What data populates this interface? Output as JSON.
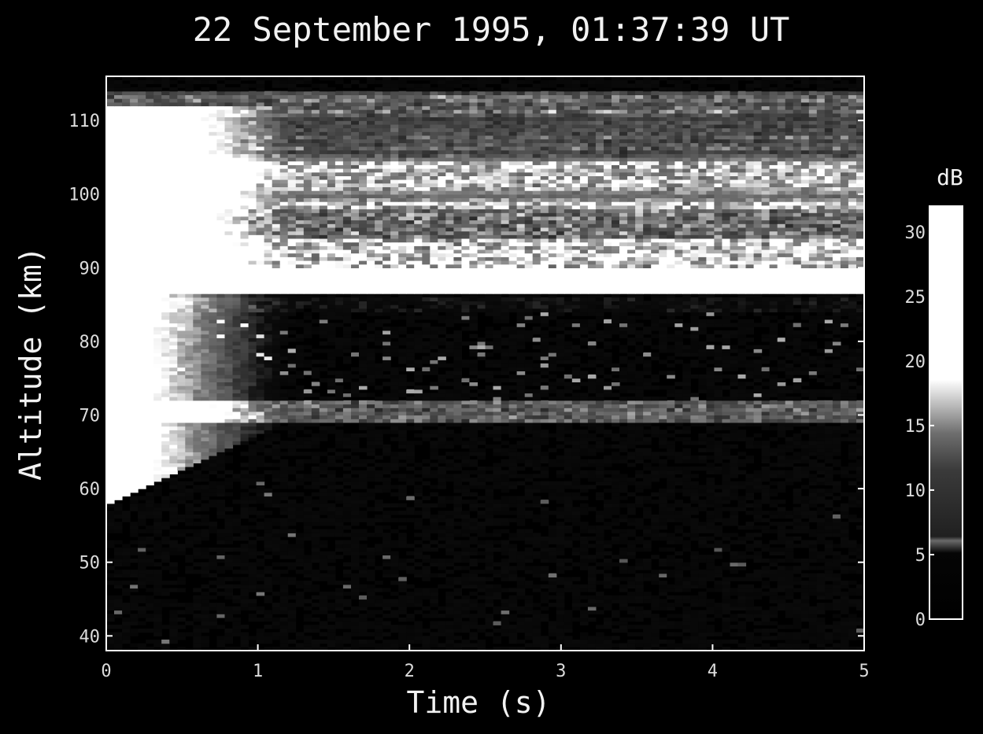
{
  "chart_data": {
    "type": "heatmap",
    "title": "22 September 1995, 01:37:39 UT",
    "xlabel": "Time (s)",
    "ylabel": "Altitude (km)",
    "xlim": [
      0,
      5
    ],
    "ylim": [
      38,
      116
    ],
    "x_ticks": [
      "0",
      "1",
      "2",
      "3",
      "4",
      "5"
    ],
    "y_ticks": [
      "40",
      "50",
      "60",
      "70",
      "80",
      "90",
      "100",
      "110"
    ],
    "colorbar": {
      "label": "dB",
      "range": [
        0,
        32
      ],
      "ticks": [
        "0",
        "5",
        "10",
        "15",
        "20",
        "25",
        "30"
      ],
      "colormap": "gray"
    },
    "z_description": "Echo power in dB; brightest layers near 88 km and 99-104 km; bright onset near t=0 between 60 and 110 km descending with time",
    "grid": false
  },
  "colors": {
    "background": "#000000",
    "axes": "#ffffff",
    "text": "#f2f2f2"
  }
}
